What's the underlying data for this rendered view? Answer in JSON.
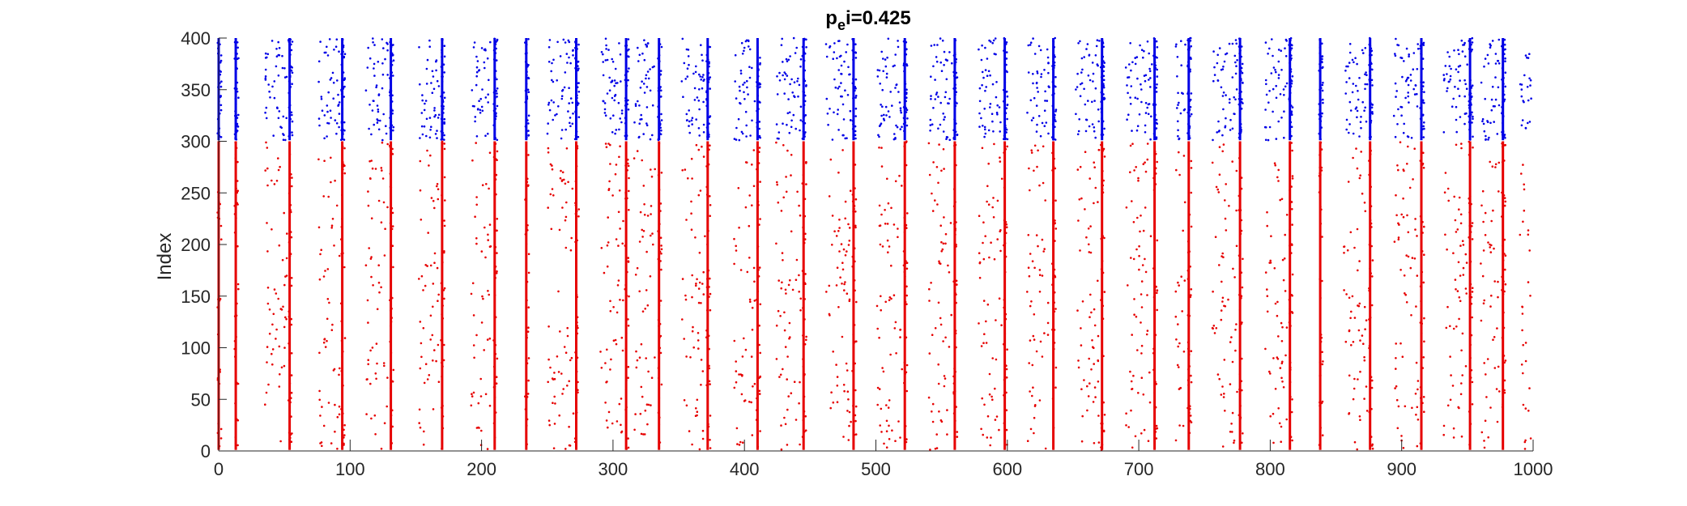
{
  "chart_data": {
    "type": "scatter",
    "title_main": "p",
    "title_sub": "e",
    "title_rest": "i=0.425",
    "xlabel": "",
    "ylabel": "Index",
    "xlim": [
      0,
      1000
    ],
    "ylim": [
      0,
      400
    ],
    "xticks": [
      0,
      100,
      200,
      300,
      400,
      500,
      600,
      700,
      800,
      900,
      1000
    ],
    "yticks": [
      0,
      50,
      100,
      150,
      200,
      250,
      300,
      350,
      400
    ],
    "grid": false,
    "legend": "none",
    "series": [
      {
        "color": "#e60000",
        "index_range": [
          1,
          300
        ],
        "burst_times": [
          0,
          13,
          54,
          94,
          131,
          170,
          210,
          234,
          272,
          310,
          335,
          372,
          410,
          445,
          483,
          522,
          560,
          598,
          635,
          672,
          712,
          738,
          777,
          815,
          838,
          876,
          915,
          952,
          977
        ],
        "sparse_windows": [
          [
            35,
            52
          ],
          [
            76,
            92
          ],
          [
            112,
            129
          ],
          [
            152,
            168
          ],
          [
            192,
            207
          ],
          [
            250,
            270
          ],
          [
            290,
            308
          ],
          [
            316,
            332
          ],
          [
            352,
            370
          ],
          [
            392,
            408
          ],
          [
            424,
            443
          ],
          [
            462,
            481
          ],
          [
            500,
            520
          ],
          [
            540,
            558
          ],
          [
            578,
            596
          ],
          [
            615,
            632
          ],
          [
            652,
            670
          ],
          [
            690,
            710
          ],
          [
            728,
            736
          ],
          [
            756,
            775
          ],
          [
            796,
            813
          ],
          [
            856,
            874
          ],
          [
            894,
            913
          ],
          [
            932,
            950
          ],
          [
            960,
            975
          ],
          [
            990,
            999
          ]
        ]
      },
      {
        "color": "#0000e6",
        "index_range": [
          301,
          400
        ],
        "burst_times": [
          0,
          13,
          54,
          94,
          131,
          170,
          210,
          234,
          272,
          310,
          335,
          372,
          410,
          445,
          483,
          522,
          560,
          598,
          635,
          672,
          712,
          738,
          777,
          815,
          838,
          876,
          915,
          952,
          977
        ],
        "sparse_windows": [
          [
            35,
            52
          ],
          [
            76,
            92
          ],
          [
            112,
            129
          ],
          [
            152,
            168
          ],
          [
            192,
            207
          ],
          [
            250,
            270
          ],
          [
            290,
            308
          ],
          [
            316,
            332
          ],
          [
            352,
            370
          ],
          [
            392,
            408
          ],
          [
            424,
            443
          ],
          [
            462,
            481
          ],
          [
            500,
            520
          ],
          [
            540,
            558
          ],
          [
            578,
            596
          ],
          [
            615,
            632
          ],
          [
            652,
            670
          ],
          [
            690,
            710
          ],
          [
            728,
            736
          ],
          [
            756,
            775
          ],
          [
            796,
            813
          ],
          [
            856,
            874
          ],
          [
            894,
            913
          ],
          [
            932,
            950
          ],
          [
            960,
            975
          ],
          [
            990,
            999
          ]
        ]
      }
    ]
  }
}
